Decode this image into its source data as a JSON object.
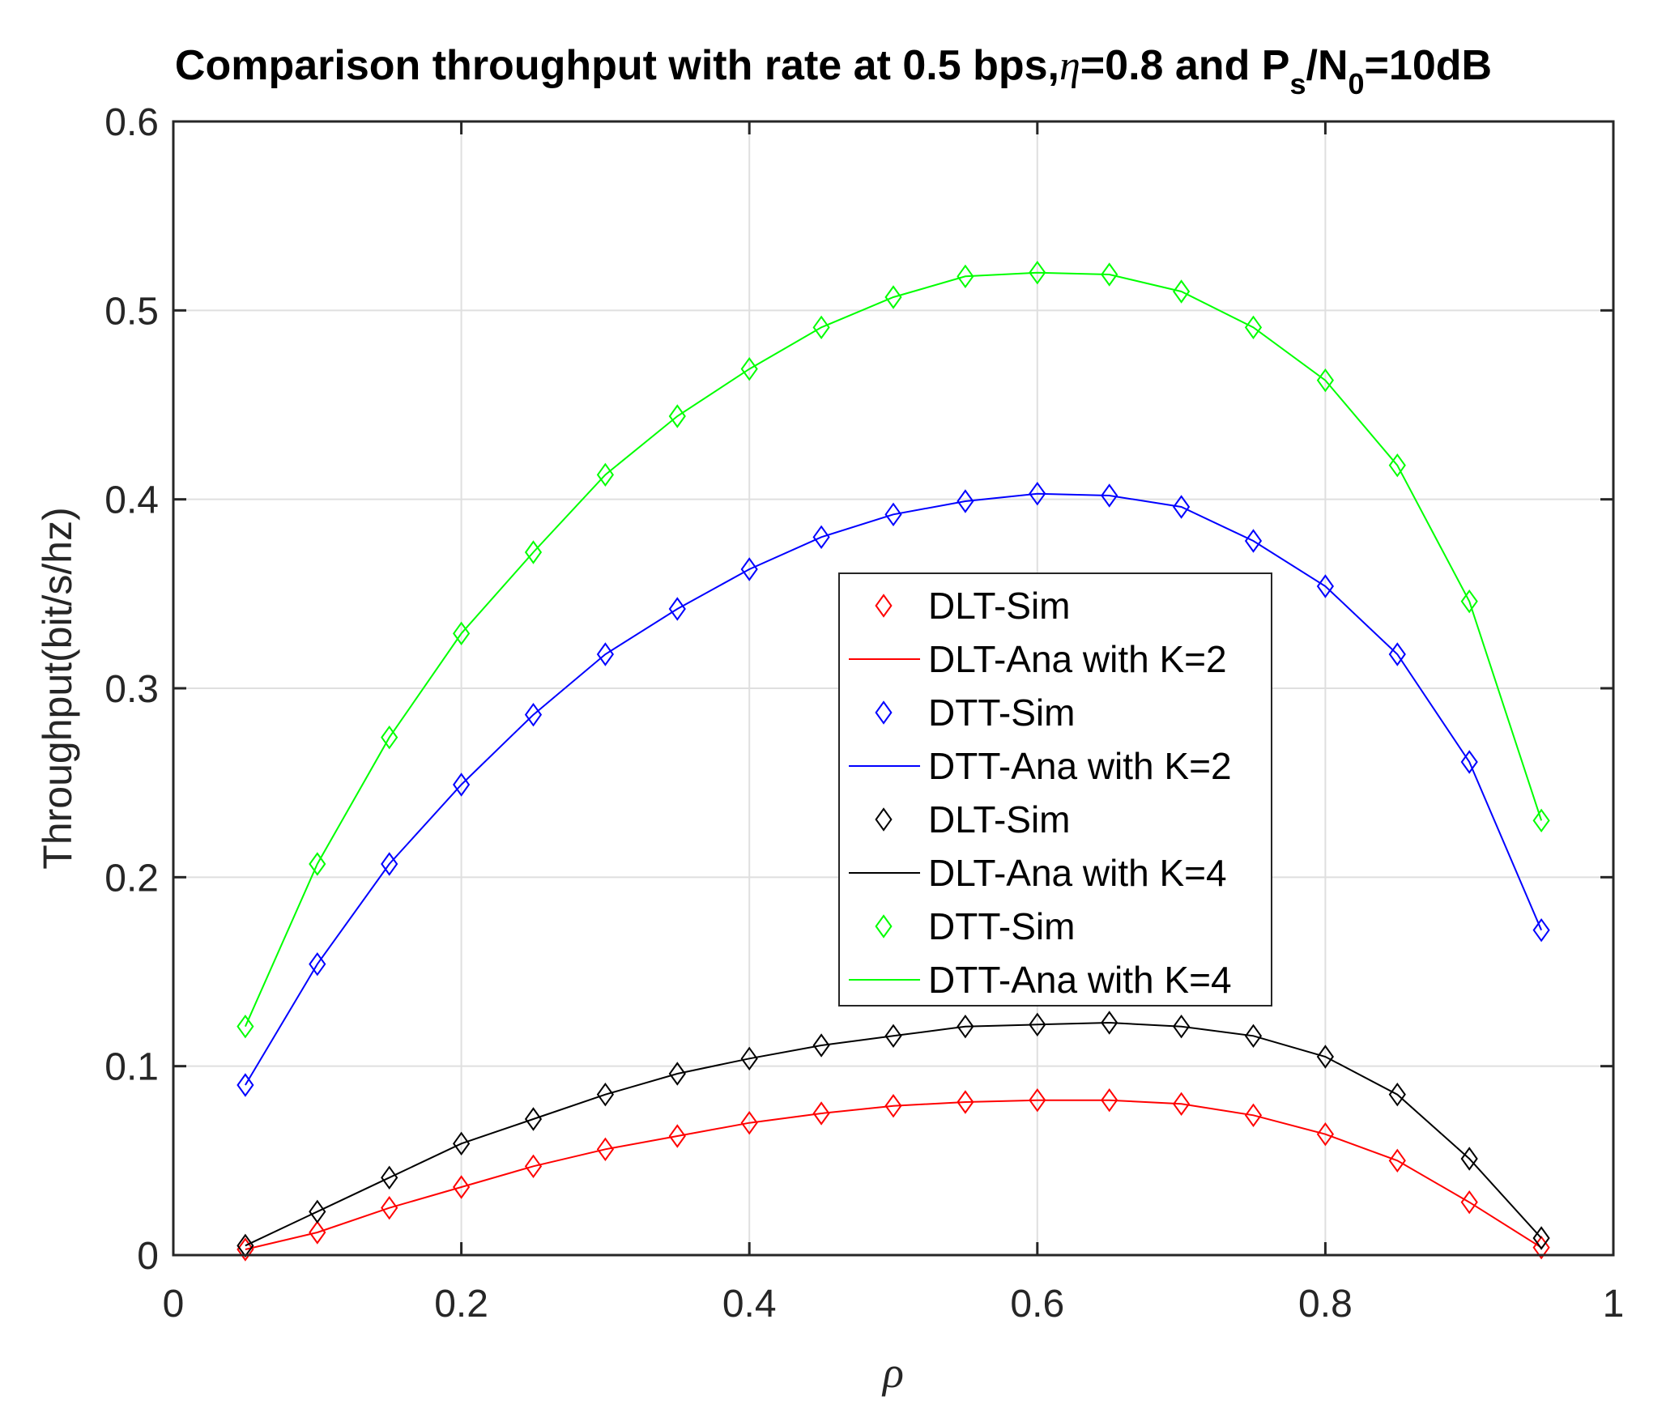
{
  "chart_data": {
    "type": "line",
    "title": {
      "prefix": "Comparison throughput with rate at 0.5 bps,",
      "eta_symbol": "η",
      "eta_value": "=0.8 and P",
      "ps_subscript": "s",
      "slash_n": "/N",
      "n0_subscript": "0",
      "snr_value": "=10dB"
    },
    "xlabel": "ρ",
    "ylabel": "Throughput(bit/s/hz)",
    "xlim": [
      0,
      1
    ],
    "ylim": [
      0,
      0.6
    ],
    "xticks": [
      0,
      0.2,
      0.4,
      0.6,
      0.8,
      1
    ],
    "xtick_labels": [
      "0",
      "0.2",
      "0.4",
      "0.6",
      "0.8",
      "1"
    ],
    "yticks": [
      0,
      0.1,
      0.2,
      0.3,
      0.4,
      0.5,
      0.6
    ],
    "ytick_labels": [
      "0",
      "0.1",
      "0.2",
      "0.3",
      "0.4",
      "0.5",
      "0.6"
    ],
    "grid": true,
    "legend_position": "center",
    "x": [
      0.05,
      0.1,
      0.15,
      0.2,
      0.25,
      0.3,
      0.35,
      0.4,
      0.45,
      0.5,
      0.55,
      0.6,
      0.65,
      0.7,
      0.75,
      0.8,
      0.85,
      0.9,
      0.95
    ],
    "series": [
      {
        "key": "dlt-k2",
        "sim_name": "DLT-Sim",
        "ana_name": "DLT-Ana with K=2",
        "color": "#ff0000",
        "values": [
          0.003,
          0.012,
          0.025,
          0.036,
          0.047,
          0.056,
          0.063,
          0.07,
          0.075,
          0.079,
          0.081,
          0.082,
          0.082,
          0.08,
          0.074,
          0.064,
          0.05,
          0.028,
          0.004
        ]
      },
      {
        "key": "dtt-k2",
        "sim_name": "DTT-Sim",
        "ana_name": "DTT-Ana with K=2",
        "color": "#0000ff",
        "values": [
          0.09,
          0.154,
          0.207,
          0.249,
          0.286,
          0.318,
          0.342,
          0.363,
          0.38,
          0.392,
          0.399,
          0.403,
          0.402,
          0.396,
          0.378,
          0.354,
          0.318,
          0.261,
          0.172
        ]
      },
      {
        "key": "dlt-k4",
        "sim_name": "DLT-Sim",
        "ana_name": "DLT-Ana with K=4",
        "color": "#000000",
        "values": [
          0.005,
          0.023,
          0.041,
          0.059,
          0.072,
          0.085,
          0.096,
          0.104,
          0.111,
          0.116,
          0.121,
          0.122,
          0.123,
          0.121,
          0.116,
          0.105,
          0.085,
          0.051,
          0.009
        ]
      },
      {
        "key": "dtt-k4",
        "sim_name": "DTT-Sim",
        "ana_name": "DTT-Ana with K=4",
        "color": "#00ff00",
        "values": [
          0.121,
          0.207,
          0.274,
          0.329,
          0.372,
          0.413,
          0.444,
          0.469,
          0.491,
          0.507,
          0.518,
          0.52,
          0.519,
          0.51,
          0.491,
          0.463,
          0.418,
          0.346,
          0.23
        ]
      }
    ]
  }
}
